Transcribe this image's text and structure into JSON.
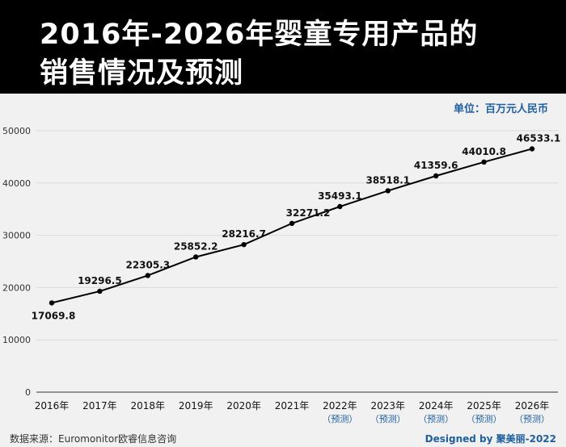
{
  "header": {
    "title_line1": "2016年-2026年婴童专用产品的",
    "title_line2": "销售情况及预测"
  },
  "unit_label": "单位：百万元人民币",
  "source": "数据来源：Euromonitor欧睿信息咨询",
  "credit": "Designed by 聚美丽-2022",
  "colors": {
    "line": "#000000",
    "accent": "#1f5f9f",
    "background": "#f1f1f1"
  },
  "chart_data": {
    "type": "line",
    "title": "2016年-2026年婴童专用产品的销售情况及预测",
    "ylabel": "单位：百万元人民币",
    "ylim": [
      0,
      50000
    ],
    "yticks": [
      0,
      10000,
      20000,
      30000,
      40000,
      50000
    ],
    "grid": true,
    "categories": [
      "2016年",
      "2017年",
      "2018年",
      "2019年",
      "2020年",
      "2021年",
      "2022年",
      "2023年",
      "2024年",
      "2025年",
      "2026年"
    ],
    "category_sublabels": [
      "",
      "",
      "",
      "",
      "",
      "",
      "（预测）",
      "（预测）",
      "（预测）",
      "（预测）",
      "（预测）"
    ],
    "values": [
      17069.8,
      19296.5,
      22305.3,
      25852.2,
      28216.7,
      32271.2,
      35493.1,
      38518.1,
      41359.6,
      44010.8,
      46533.1
    ],
    "value_labels": [
      "17069.8",
      "19296.5",
      "22305.3",
      "25852.2",
      "28216.7",
      "32271.2",
      "35493.1",
      "38518.1",
      "41359.6",
      "44010.8",
      "46533.1"
    ]
  }
}
